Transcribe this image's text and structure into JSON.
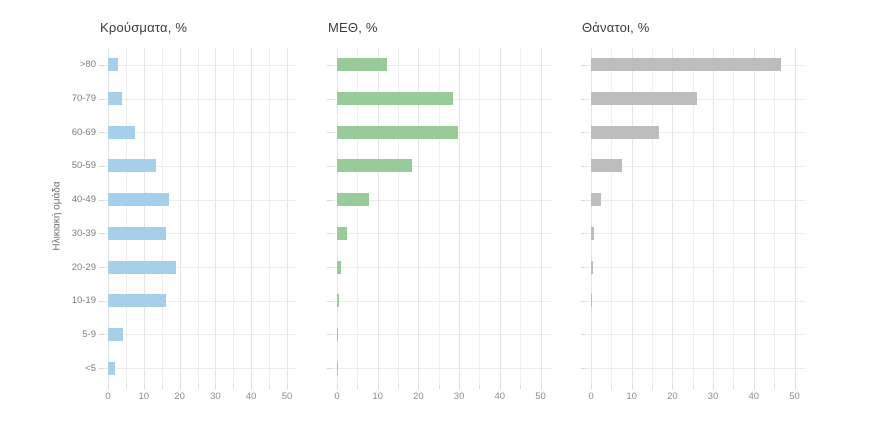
{
  "y_axis": {
    "title": "Ηλικιακή ομάδα"
  },
  "chart_data": [
    {
      "type": "bar",
      "orientation": "horizontal",
      "title": "Κρούσματα, %",
      "ylabel": "Ηλικιακή ομάδα",
      "categories": [
        ">80",
        "70-79",
        "60-69",
        "50-59",
        "40-49",
        "30-39",
        "20-29",
        "10-19",
        "5-9",
        "<5"
      ],
      "values": [
        2.9,
        3.8,
        7.5,
        13.3,
        17.0,
        16.1,
        19.1,
        16.1,
        4.3,
        2.0
      ],
      "color": "#a6d0ea",
      "xlim": [
        0,
        53
      ],
      "x_ticks": [
        0,
        10,
        20,
        30,
        40,
        50
      ],
      "x_minor_step": 5,
      "grid": true,
      "legend": false,
      "show_y_labels": true
    },
    {
      "type": "bar",
      "orientation": "horizontal",
      "title": "ΜΕΘ, %",
      "categories": [
        ">80",
        "70-79",
        "60-69",
        "50-59",
        "40-49",
        "30-39",
        "20-29",
        "10-19",
        "5-9",
        "<5"
      ],
      "values": [
        12.4,
        28.4,
        29.8,
        18.5,
        7.9,
        2.5,
        1.0,
        0.5,
        0.2,
        0.3
      ],
      "color": "#98cb98",
      "xlim": [
        0,
        53
      ],
      "x_ticks": [
        0,
        10,
        20,
        30,
        40,
        50
      ],
      "x_minor_step": 5,
      "grid": true,
      "legend": false,
      "show_y_labels": false
    },
    {
      "type": "bar",
      "orientation": "horizontal",
      "title": "Θάνατοι, %",
      "categories": [
        ">80",
        "70-79",
        "60-69",
        "50-59",
        "40-49",
        "30-39",
        "20-29",
        "10-19",
        "5-9",
        "<5"
      ],
      "values": [
        46.8,
        26.1,
        16.6,
        7.6,
        2.4,
        0.8,
        0.4,
        0.15,
        0,
        0
      ],
      "color": "#bdbdbd",
      "xlim": [
        0,
        53
      ],
      "x_ticks": [
        0,
        10,
        20,
        30,
        40,
        50
      ],
      "x_minor_step": 5,
      "grid": true,
      "legend": false,
      "show_y_labels": false
    }
  ]
}
